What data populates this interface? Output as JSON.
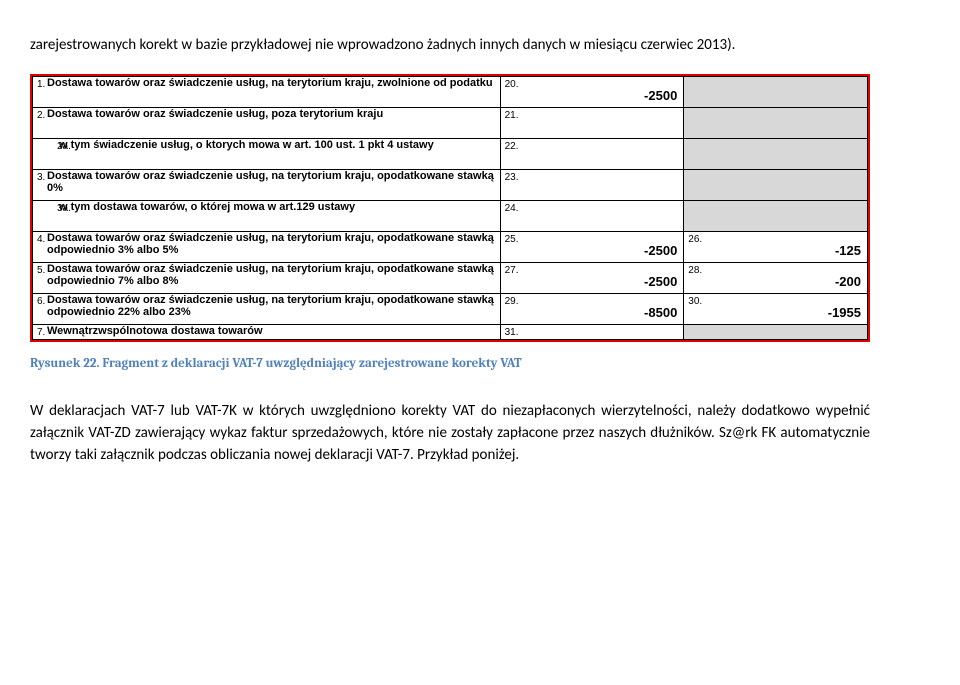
{
  "intro": "zarejestrowanych korekt w bazie przykładowej nie wprowadzono żadnych innych danych w miesiącu czerwiec 2013).",
  "caption": "Rysunek 22. Fragment z deklaracji VAT-7 uwzględniający zarejestrowane korekty VAT",
  "body": "W deklaracjach VAT-7 lub VAT-7K w których uwzględniono korekty VAT do niezapłaconych wierzytelności, należy dodatkowo wypełnić załącznik VAT-ZD zawierający wykaz faktur sprzedażowych, które nie zostały zapłacone przez naszych dłużników. Sz@rk FK automatycznie tworzy taki załącznik podczas obliczania nowej deklaracji VAT-7. Przykład poniżej.",
  "rows": [
    {
      "num": "1.",
      "desc": "Dostawa towarów oraz świadczenie usług, na terytorium kraju, zwolnione od podatku",
      "f1": "20.",
      "v1": "-2500",
      "f2": "",
      "v2": "",
      "grey2": true
    },
    {
      "num": "2.",
      "desc": "Dostawa towarów oraz świadczenie usług, poza terytorium kraju",
      "f1": "21.",
      "v1": "",
      "f2": "",
      "v2": "",
      "grey2": true
    },
    {
      "num": "2a.",
      "desc": "w tym świadczenie usług, o ktorych mowa w art. 100 ust. 1 pkt 4 ustawy",
      "indent": true,
      "f1": "22.",
      "v1": "",
      "f2": "",
      "v2": "",
      "grey2": true
    },
    {
      "num": "3.",
      "desc": "Dostawa towarów oraz świadczenie usług, na terytorium kraju, opodatkowane stawką 0%",
      "f1": "23.",
      "v1": "",
      "f2": "",
      "v2": "",
      "grey2": true
    },
    {
      "num": "3a.",
      "desc": "w tym dostawa towarów, o której mowa w art.129 ustawy",
      "indent": true,
      "f1": "24.",
      "v1": "",
      "f2": "",
      "v2": "",
      "grey2": true
    },
    {
      "num": "4.",
      "desc": "Dostawa towarów oraz świadczenie usług, na terytorium kraju, opodatkowane stawką odpowiednio 3% albo 5%",
      "f1": "25.",
      "v1": "-2500",
      "f2": "26.",
      "v2": "-125"
    },
    {
      "num": "5.",
      "desc": "Dostawa towarów oraz świadczenie usług, na terytorium kraju, opodatkowane stawką odpowiednio 7% albo 8%",
      "f1": "27.",
      "v1": "-2500",
      "f2": "28.",
      "v2": "-200"
    },
    {
      "num": "6.",
      "desc": "Dostawa towarów oraz świadczenie usług, na terytorium kraju, opodatkowane stawką odpowiednio 22% albo 23%",
      "f1": "29.",
      "v1": "-8500",
      "f2": "30.",
      "v2": "-1955"
    }
  ],
  "cutRow": {
    "num": "7.",
    "desc": "Wewnątrzwspólnotowa dostawa towarów",
    "f1": "31."
  }
}
